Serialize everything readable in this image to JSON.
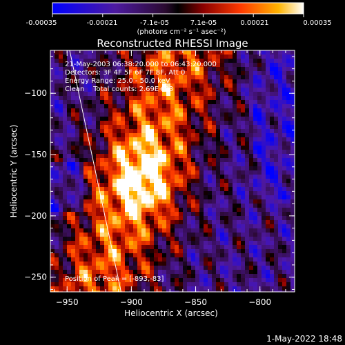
{
  "colorbar": {
    "ticks": [
      "-0.00035",
      "-0.00021",
      "-7.1e-05",
      "7.1e-05",
      "0.00021",
      "0.00035"
    ],
    "units_line": "(photons cm⁻² s⁻¹ asec⁻²)",
    "range": [
      -0.00035,
      0.00035
    ]
  },
  "chart_data": {
    "type": "heatmap",
    "title": "Reconstructed RHESSI Image",
    "xlabel": "Heliocentric X (arcsec)",
    "ylabel": "Heliocentric Y (arcsec)",
    "xlim": [
      -963,
      -773
    ],
    "ylim": [
      -262,
      -65
    ],
    "xticks": [
      -950,
      -900,
      -850,
      -800
    ],
    "xtick_labels": [
      "−950",
      "−900",
      "−850",
      "−800"
    ],
    "yticks": [
      -100,
      -150,
      -200,
      -250
    ],
    "ytick_labels": [
      "−100",
      "−150",
      "−200",
      "−250"
    ],
    "annotations": [
      "21-May-2003 06:38:20.000 to 06:43:20.000",
      "Detectors: 3F 4F 5F 6F 7F 8F, Att 0",
      "Energy Range: 25.0 - 50.0 keV",
      "Clean    Total counts: 2.69E+03",
      "Position of Peak = [-893,-83]"
    ],
    "limb_line": [
      [
        -948,
        -65
      ],
      [
        -908,
        -262
      ]
    ]
  },
  "footer": {
    "timestamp": "1-May-2022 18:48"
  }
}
